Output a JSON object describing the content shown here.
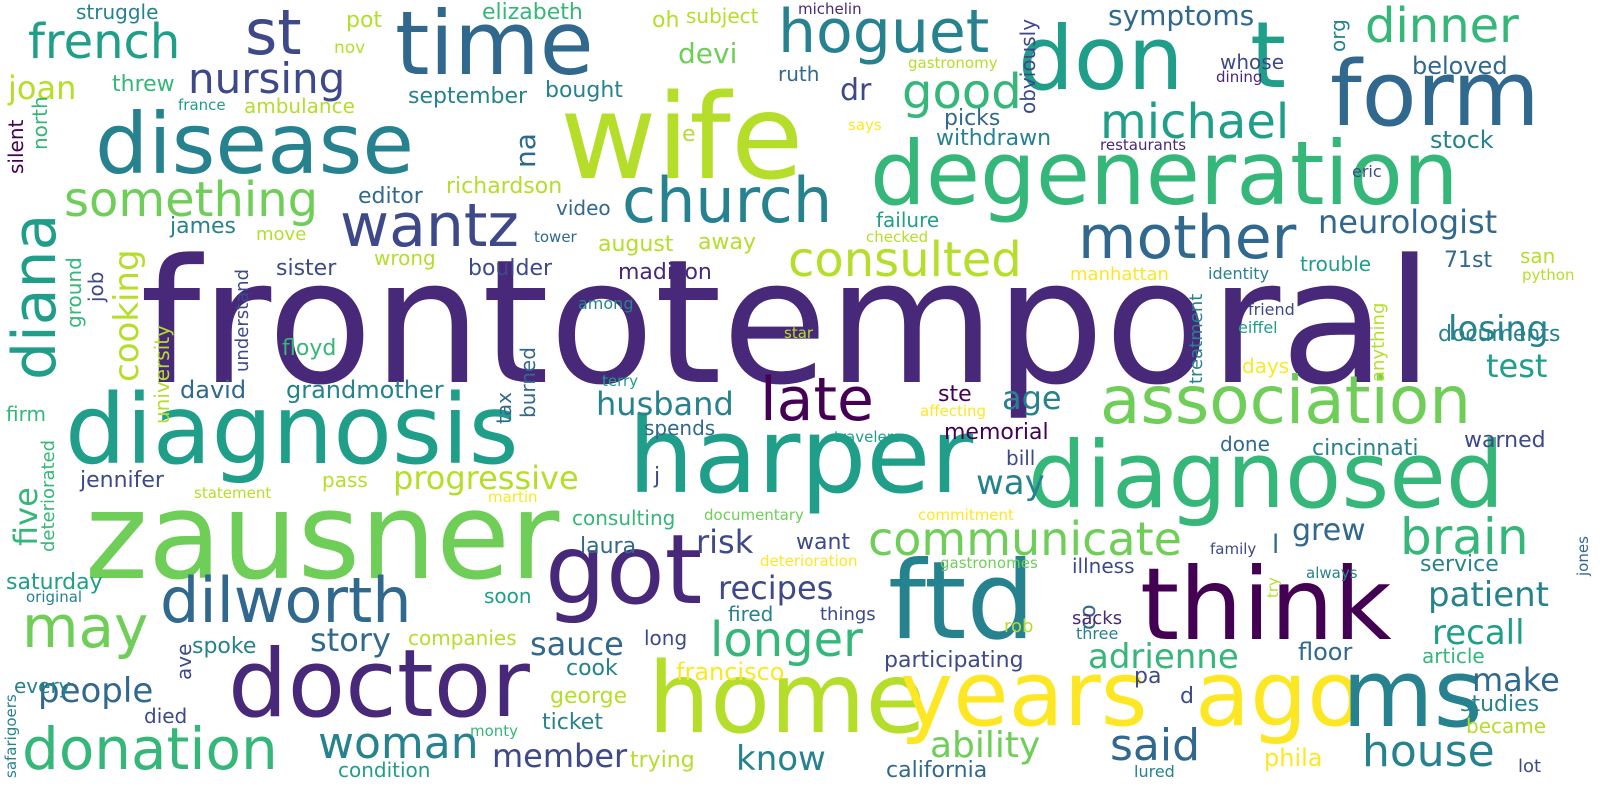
{
  "colors": {
    "background": "#ffffff",
    "palette": [
      "#440154",
      "#482878",
      "#3e4989",
      "#31688e",
      "#26828e",
      "#1f9e89",
      "#35b779",
      "#6ece58",
      "#b5de2b",
      "#fde725"
    ]
  },
  "words": [
    {
      "text": "frontotemporal",
      "color": "#482878"
    },
    {
      "text": "wife",
      "color": "#b5de2b"
    },
    {
      "text": "zausner",
      "color": "#6ece58"
    },
    {
      "text": "harper",
      "color": "#1f9e89"
    },
    {
      "text": "diagnosis",
      "color": "#1f9e89"
    },
    {
      "text": "degeneration",
      "color": "#35b779"
    },
    {
      "text": "disease",
      "color": "#26828e"
    },
    {
      "text": "time",
      "color": "#31688e"
    },
    {
      "text": "don",
      "color": "#1f9e89"
    },
    {
      "text": "t",
      "color": "#1f9e89"
    },
    {
      "text": "form",
      "color": "#31688e"
    },
    {
      "text": "diagnosed",
      "color": "#35b779"
    },
    {
      "text": "home",
      "color": "#b5de2b"
    },
    {
      "text": "years",
      "color": "#fde725"
    },
    {
      "text": "ago",
      "color": "#fde725"
    },
    {
      "text": "ms",
      "color": "#26828e"
    },
    {
      "text": "ftd",
      "color": "#26828e"
    },
    {
      "text": "think",
      "color": "#440154"
    },
    {
      "text": "got",
      "color": "#482878"
    },
    {
      "text": "doctor",
      "color": "#482878"
    },
    {
      "text": "association",
      "color": "#6ece58"
    },
    {
      "text": "church",
      "color": "#26828e"
    },
    {
      "text": "mother",
      "color": "#31688e"
    },
    {
      "text": "wantz",
      "color": "#3e4989"
    },
    {
      "text": "late",
      "color": "#440154"
    },
    {
      "text": "st",
      "color": "#3e4989"
    },
    {
      "text": "hoguet",
      "color": "#26828e"
    },
    {
      "text": "dilworth",
      "color": "#31688e"
    },
    {
      "text": "donation",
      "color": "#35b779"
    },
    {
      "text": "diana",
      "color": "#1f9e89"
    },
    {
      "text": "may",
      "color": "#6ece58"
    },
    {
      "text": "nursing",
      "color": "#3e4989"
    },
    {
      "text": "french",
      "color": "#1f9e89"
    },
    {
      "text": "something",
      "color": "#6ece58"
    },
    {
      "text": "consulted",
      "color": "#b5de2b"
    },
    {
      "text": "dinner",
      "color": "#35b779"
    },
    {
      "text": "michael",
      "color": "#1f9e89"
    },
    {
      "text": "good",
      "color": "#35b779"
    },
    {
      "text": "communicate",
      "color": "#6ece58"
    },
    {
      "text": "brain",
      "color": "#35b779"
    },
    {
      "text": "longer",
      "color": "#35b779"
    },
    {
      "text": "house",
      "color": "#26828e"
    },
    {
      "text": "woman",
      "color": "#26828e"
    },
    {
      "text": "said",
      "color": "#31688e"
    },
    {
      "text": "neurologist",
      "color": "#31688e"
    },
    {
      "text": "symptoms",
      "color": "#31688e"
    },
    {
      "text": "husband",
      "color": "#26828e"
    },
    {
      "text": "progressive",
      "color": "#b5de2b"
    },
    {
      "text": "people",
      "color": "#31688e"
    },
    {
      "text": "ability",
      "color": "#6ece58"
    },
    {
      "text": "adrienne",
      "color": "#35b779"
    },
    {
      "text": "patient",
      "color": "#26828e"
    },
    {
      "text": "recall",
      "color": "#1f9e89"
    },
    {
      "text": "losing",
      "color": "#26828e"
    },
    {
      "text": "story",
      "color": "#31688e"
    },
    {
      "text": "recipes",
      "color": "#3e4989"
    },
    {
      "text": "sauce",
      "color": "#31688e"
    },
    {
      "text": "risk",
      "color": "#3e4989"
    },
    {
      "text": "member",
      "color": "#3e4989"
    },
    {
      "text": "know",
      "color": "#26828e"
    },
    {
      "text": "make",
      "color": "#31688e"
    },
    {
      "text": "test",
      "color": "#1f9e89"
    },
    {
      "text": "grew",
      "color": "#31688e"
    },
    {
      "text": "way",
      "color": "#26828e"
    },
    {
      "text": "age",
      "color": "#26828e"
    },
    {
      "text": "joan",
      "color": "#b5de2b"
    },
    {
      "text": "cooking",
      "color": "#b5de2b"
    },
    {
      "text": "five",
      "color": "#35b779"
    },
    {
      "text": "na",
      "color": "#31688e"
    },
    {
      "text": "struggle",
      "color": "#26828e"
    },
    {
      "text": "pot",
      "color": "#b5de2b"
    },
    {
      "text": "elizabeth",
      "color": "#35b779"
    },
    {
      "text": "oh",
      "color": "#b5de2b"
    },
    {
      "text": "subject",
      "color": "#b5de2b"
    },
    {
      "text": "michelin",
      "color": "#482878"
    },
    {
      "text": "nov",
      "color": "#b5de2b"
    },
    {
      "text": "threw",
      "color": "#35b779"
    },
    {
      "text": "france",
      "color": "#1f9e89"
    },
    {
      "text": "ambulance",
      "color": "#b5de2b"
    },
    {
      "text": "september",
      "color": "#26828e"
    },
    {
      "text": "bought",
      "color": "#26828e"
    },
    {
      "text": "devi",
      "color": "#6ece58"
    },
    {
      "text": "dr",
      "color": "#3e4989"
    },
    {
      "text": "ruth",
      "color": "#31688e"
    },
    {
      "text": "gastronomy",
      "color": "#b5de2b"
    },
    {
      "text": "obviously",
      "color": "#3e4989"
    },
    {
      "text": "org",
      "color": "#26828e"
    },
    {
      "text": "whose",
      "color": "#3e4989"
    },
    {
      "text": "dining",
      "color": "#482878"
    },
    {
      "text": "beloved",
      "color": "#31688e"
    },
    {
      "text": "picks",
      "color": "#31688e"
    },
    {
      "text": "withdrawn",
      "color": "#26828e"
    },
    {
      "text": "says",
      "color": "#fde725"
    },
    {
      "text": "restaurants",
      "color": "#482878"
    },
    {
      "text": "stock",
      "color": "#26828e"
    },
    {
      "text": "e",
      "color": "#b5de2b"
    },
    {
      "text": "eric",
      "color": "#3e4989"
    },
    {
      "text": "silent",
      "color": "#440154"
    },
    {
      "text": "north",
      "color": "#35b779"
    },
    {
      "text": "editor",
      "color": "#31688e"
    },
    {
      "text": "richardson",
      "color": "#b5de2b"
    },
    {
      "text": "video",
      "color": "#31688e"
    },
    {
      "text": "james",
      "color": "#26828e"
    },
    {
      "text": "move",
      "color": "#b5de2b"
    },
    {
      "text": "tower",
      "color": "#31688e"
    },
    {
      "text": "failure",
      "color": "#1f9e89"
    },
    {
      "text": "checked",
      "color": "#b5de2b"
    },
    {
      "text": "august",
      "color": "#b5de2b"
    },
    {
      "text": "away",
      "color": "#b5de2b"
    },
    {
      "text": "san",
      "color": "#b5de2b"
    },
    {
      "text": "job",
      "color": "#3e4989"
    },
    {
      "text": "ground",
      "color": "#35b779"
    },
    {
      "text": "sister",
      "color": "#3e4989"
    },
    {
      "text": "wrong",
      "color": "#b5de2b"
    },
    {
      "text": "boulder",
      "color": "#3e4989"
    },
    {
      "text": "madison",
      "color": "#482878"
    },
    {
      "text": "manhattan",
      "color": "#fde725"
    },
    {
      "text": "identity",
      "color": "#26828e"
    },
    {
      "text": "trouble",
      "color": "#1f9e89"
    },
    {
      "text": "71st",
      "color": "#31688e"
    },
    {
      "text": "python",
      "color": "#b5de2b"
    },
    {
      "text": "understand",
      "color": "#3e4989"
    },
    {
      "text": "university",
      "color": "#b5de2b"
    },
    {
      "text": "among",
      "color": "#26828e"
    },
    {
      "text": "floyd",
      "color": "#35b779"
    },
    {
      "text": "star",
      "color": "#b5de2b"
    },
    {
      "text": "anything",
      "color": "#b5de2b"
    },
    {
      "text": "friend",
      "color": "#3e4989"
    },
    {
      "text": "eiffel",
      "color": "#1f9e89"
    },
    {
      "text": "treatment",
      "color": "#26828e"
    },
    {
      "text": "documents",
      "color": "#26828e"
    },
    {
      "text": "david",
      "color": "#31688e"
    },
    {
      "text": "grandmother",
      "color": "#26828e"
    },
    {
      "text": "terry",
      "color": "#1f9e89"
    },
    {
      "text": "days",
      "color": "#fde725"
    },
    {
      "text": "firm",
      "color": "#35b779"
    },
    {
      "text": "tax",
      "color": "#31688e"
    },
    {
      "text": "burned",
      "color": "#31688e"
    },
    {
      "text": "ste",
      "color": "#440154"
    },
    {
      "text": "affecting",
      "color": "#fde725"
    },
    {
      "text": "spends",
      "color": "#31688e"
    },
    {
      "text": "memorial",
      "color": "#440154"
    },
    {
      "text": "travelers",
      "color": "#1f9e89"
    },
    {
      "text": "cincinnati",
      "color": "#26828e"
    },
    {
      "text": "warned",
      "color": "#3e4989"
    },
    {
      "text": "done",
      "color": "#31688e"
    },
    {
      "text": "deteriorated",
      "color": "#35b779"
    },
    {
      "text": "bill",
      "color": "#3e4989"
    },
    {
      "text": "jennifer",
      "color": "#3e4989"
    },
    {
      "text": "pass",
      "color": "#b5de2b"
    },
    {
      "text": "statement",
      "color": "#b5de2b"
    },
    {
      "text": "martin",
      "color": "#fde725"
    },
    {
      "text": "j",
      "color": "#3e4989"
    },
    {
      "text": "consulting",
      "color": "#35b779"
    },
    {
      "text": "documentary",
      "color": "#6ece58"
    },
    {
      "text": "commitment",
      "color": "#fde725"
    },
    {
      "text": "l",
      "color": "#31688e"
    },
    {
      "text": "laura",
      "color": "#31688e"
    },
    {
      "text": "want",
      "color": "#3e4989"
    },
    {
      "text": "deterioration",
      "color": "#fde725"
    },
    {
      "text": "gastronomes",
      "color": "#6ece58"
    },
    {
      "text": "illness",
      "color": "#3e4989"
    },
    {
      "text": "family",
      "color": "#3e4989"
    },
    {
      "text": "try",
      "color": "#b5de2b"
    },
    {
      "text": "always",
      "color": "#26828e"
    },
    {
      "text": "service",
      "color": "#26828e"
    },
    {
      "text": "jones",
      "color": "#31688e"
    },
    {
      "text": "saturday",
      "color": "#1f9e89"
    },
    {
      "text": "original",
      "color": "#26828e"
    },
    {
      "text": "soon",
      "color": "#1f9e89"
    },
    {
      "text": "co",
      "color": "#31688e"
    },
    {
      "text": "sacks",
      "color": "#482878"
    },
    {
      "text": "three",
      "color": "#26828e"
    },
    {
      "text": "fired",
      "color": "#26828e"
    },
    {
      "text": "things",
      "color": "#3e4989"
    },
    {
      "text": "rob",
      "color": "#b5de2b"
    },
    {
      "text": "spoke",
      "color": "#26828e"
    },
    {
      "text": "companies",
      "color": "#b5de2b"
    },
    {
      "text": "long",
      "color": "#3e4989"
    },
    {
      "text": "cook",
      "color": "#26828e"
    },
    {
      "text": "francisco",
      "color": "#fde725"
    },
    {
      "text": "participating",
      "color": "#3e4989"
    },
    {
      "text": "floor",
      "color": "#31688e"
    },
    {
      "text": "article",
      "color": "#35b779"
    },
    {
      "text": "pa",
      "color": "#3e4989"
    },
    {
      "text": "d",
      "color": "#3e4989"
    },
    {
      "text": "studies",
      "color": "#26828e"
    },
    {
      "text": "every",
      "color": "#26828e"
    },
    {
      "text": "ave",
      "color": "#3e4989"
    },
    {
      "text": "died",
      "color": "#3e4989"
    },
    {
      "text": "george",
      "color": "#b5de2b"
    },
    {
      "text": "ticket",
      "color": "#26828e"
    },
    {
      "text": "became",
      "color": "#b5de2b"
    },
    {
      "text": "safarigoers",
      "color": "#26828e"
    },
    {
      "text": "monty",
      "color": "#35b779"
    },
    {
      "text": "trying",
      "color": "#b5de2b"
    },
    {
      "text": "phila",
      "color": "#fde725"
    },
    {
      "text": "lot",
      "color": "#3e4989"
    },
    {
      "text": "condition",
      "color": "#1f9e89"
    },
    {
      "text": "california",
      "color": "#31688e"
    },
    {
      "text": "lured",
      "color": "#26828e"
    }
  ]
}
